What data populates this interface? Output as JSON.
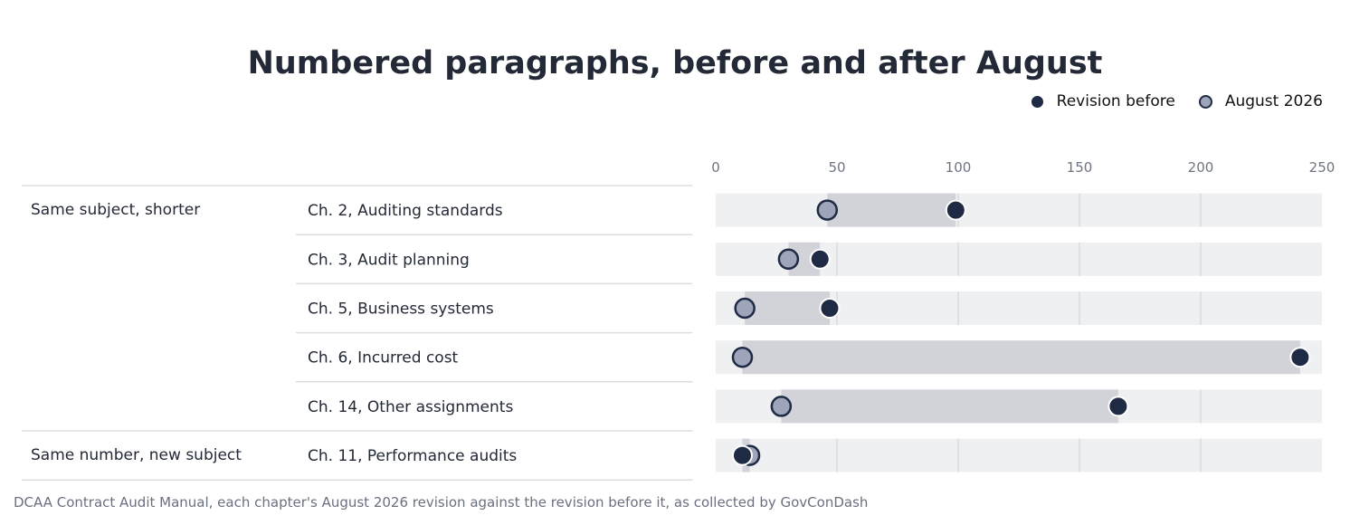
{
  "title": "Numbered paragraphs, before and after August",
  "legend": [
    {
      "label": "Revision before",
      "color": "#1f2a44"
    },
    {
      "label": "August 2026",
      "color": "#9ea5ba"
    }
  ],
  "note": "DCAA Contract Audit Manual, each chapter's August 2026 revision against the revision before it, as collected by GovConDash",
  "colors": {
    "before": "#1f2a44",
    "august": "#9ea5ba",
    "track": "#eff0f2",
    "span": "#d2d3d9",
    "grid": "#d9dbe0",
    "rule": "#dcdde2"
  },
  "chart_data": {
    "type": "dumbbell",
    "xlim": [
      0,
      250
    ],
    "xticks": [
      0,
      50,
      100,
      150,
      200,
      250
    ],
    "groups": [
      {
        "name": "Same subject, shorter",
        "rows": [
          {
            "label": "Ch. 2, Auditing standards",
            "before": 99,
            "august": 46
          },
          {
            "label": "Ch. 3, Audit planning",
            "before": 43,
            "august": 30
          },
          {
            "label": "Ch. 5, Business systems",
            "before": 47,
            "august": 12
          },
          {
            "label": "Ch. 6, Incurred cost",
            "before": 241,
            "august": 11
          },
          {
            "label": "Ch. 14, Other assignments",
            "before": 166,
            "august": 27
          }
        ]
      },
      {
        "name": "Same number, new subject",
        "rows": [
          {
            "label": "Ch. 11, Performance audits",
            "before": 11,
            "august": 14
          }
        ]
      }
    ]
  }
}
